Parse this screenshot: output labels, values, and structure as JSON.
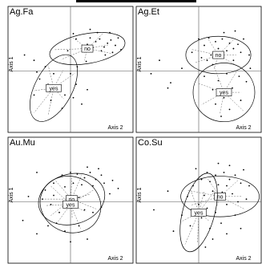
{
  "chart_data": [
    {
      "type": "scatter",
      "title": "Ag.Fa",
      "xlabel": "Axis 2",
      "ylabel": "Axis 1",
      "xlim": [
        -1,
        1
      ],
      "ylim": [
        -1,
        1
      ],
      "grid": false,
      "points": [
        [
          0.35,
          0.62
        ],
        [
          0.45,
          0.55
        ],
        [
          0.52,
          0.6
        ],
        [
          0.6,
          0.45
        ],
        [
          0.66,
          0.52
        ],
        [
          0.72,
          0.58
        ],
        [
          0.8,
          0.48
        ],
        [
          0.55,
          0.38
        ],
        [
          0.4,
          0.44
        ],
        [
          0.3,
          0.5
        ],
        [
          0.25,
          0.36
        ],
        [
          0.62,
          0.3
        ],
        [
          0.75,
          0.35
        ],
        [
          0.85,
          0.62
        ],
        [
          0.48,
          0.72
        ],
        [
          0.1,
          0.6
        ],
        [
          -0.82,
          0.3
        ],
        [
          -0.65,
          0.2
        ],
        [
          -0.45,
          0.08
        ],
        [
          -0.3,
          -0.05
        ],
        [
          -0.55,
          -0.15
        ],
        [
          -0.4,
          -0.25
        ],
        [
          -0.2,
          -0.3
        ],
        [
          -0.1,
          -0.45
        ],
        [
          0.05,
          -0.5
        ],
        [
          -0.35,
          -0.55
        ],
        [
          0.2,
          -0.62
        ],
        [
          -0.65,
          -0.45
        ],
        [
          0.3,
          -0.35
        ],
        [
          -0.15,
          -0.7
        ],
        [
          0.1,
          -0.25
        ],
        [
          0.0,
          -0.05
        ],
        [
          0.12,
          0.08
        ],
        [
          -0.05,
          0.38
        ],
        [
          0.05,
          0.7
        ],
        [
          0.9,
          0.4
        ],
        [
          0.7,
          0.72
        ],
        [
          0.35,
          0.78
        ],
        [
          0.28,
          0.18
        ],
        [
          -0.6,
          -0.02
        ]
      ],
      "groups": [
        {
          "label": "no",
          "center": [
            0.3,
            0.42
          ],
          "rx": 0.68,
          "ry": 0.28,
          "angle": -10
        },
        {
          "label": "yes",
          "center": [
            -0.3,
            -0.32
          ],
          "rx": 0.65,
          "ry": 0.35,
          "angle": -62
        }
      ]
    },
    {
      "type": "scatter",
      "title": "Ag.Et",
      "xlabel": "Axis 2",
      "ylabel": "Axis 1",
      "xlim": [
        -1,
        1
      ],
      "ylim": [
        -1,
        1
      ],
      "grid": false,
      "points": [
        [
          0.18,
          0.62
        ],
        [
          0.3,
          0.55
        ],
        [
          0.42,
          0.6
        ],
        [
          0.55,
          0.52
        ],
        [
          0.62,
          0.42
        ],
        [
          0.7,
          0.5
        ],
        [
          0.5,
          0.38
        ],
        [
          0.35,
          0.42
        ],
        [
          0.22,
          0.3
        ],
        [
          0.1,
          0.48
        ],
        [
          0.0,
          0.6
        ],
        [
          -0.12,
          0.35
        ],
        [
          0.75,
          0.35
        ],
        [
          0.8,
          0.6
        ],
        [
          0.45,
          0.72
        ],
        [
          0.3,
          0.28
        ],
        [
          0.62,
          0.2
        ],
        [
          0.15,
          0.2
        ],
        [
          0.9,
          0.3
        ],
        [
          0.25,
          0.12
        ],
        [
          0.5,
          -0.05
        ],
        [
          0.72,
          -0.1
        ],
        [
          0.35,
          -0.18
        ],
        [
          0.6,
          -0.32
        ],
        [
          0.85,
          -0.2
        ],
        [
          0.45,
          -0.5
        ],
        [
          0.25,
          -0.35
        ],
        [
          0.75,
          -0.55
        ],
        [
          0.55,
          -0.72
        ],
        [
          0.3,
          -0.62
        ],
        [
          -0.5,
          -0.22
        ],
        [
          -0.55,
          -0.32
        ],
        [
          -0.7,
          0.2
        ],
        [
          -0.3,
          0.05
        ],
        [
          -0.85,
          -0.05
        ],
        [
          0.1,
          -0.1
        ],
        [
          0.92,
          0.05
        ],
        [
          0.4,
          -0.85
        ],
        [
          0.65,
          0.75
        ],
        [
          0.05,
          0.25
        ]
      ],
      "groups": [
        {
          "label": "no",
          "center": [
            0.35,
            0.3
          ],
          "rx": 0.58,
          "ry": 0.35,
          "angle": 0
        },
        {
          "label": "yes",
          "center": [
            0.45,
            -0.4
          ],
          "rx": 0.55,
          "ry": 0.55,
          "angle": 0
        }
      ]
    },
    {
      "type": "scatter",
      "title": "Au.Mu",
      "xlabel": "Axis 2",
      "ylabel": "Axis 1",
      "xlim": [
        -1,
        1
      ],
      "ylim": [
        -1,
        1
      ],
      "grid": false,
      "points": [
        [
          -0.15,
          0.5
        ],
        [
          0.0,
          0.55
        ],
        [
          0.12,
          0.52
        ],
        [
          0.25,
          0.45
        ],
        [
          0.35,
          0.55
        ],
        [
          0.45,
          0.42
        ],
        [
          0.55,
          0.5
        ],
        [
          0.6,
          0.35
        ],
        [
          0.4,
          0.3
        ],
        [
          0.2,
          0.32
        ],
        [
          0.05,
          0.35
        ],
        [
          -0.1,
          0.28
        ],
        [
          -0.3,
          0.35
        ],
        [
          -0.45,
          0.22
        ],
        [
          -0.5,
          0.05
        ],
        [
          -0.35,
          -0.05
        ],
        [
          -0.2,
          -0.2
        ],
        [
          -0.05,
          -0.1
        ],
        [
          0.1,
          -0.05
        ],
        [
          0.25,
          -0.15
        ],
        [
          0.4,
          -0.2
        ],
        [
          0.55,
          -0.1
        ],
        [
          0.7,
          0.15
        ],
        [
          0.75,
          0.4
        ],
        [
          0.3,
          0.65
        ],
        [
          -0.25,
          -0.4
        ],
        [
          -0.4,
          -0.45
        ],
        [
          -0.1,
          -0.55
        ],
        [
          0.15,
          -0.45
        ],
        [
          0.3,
          -0.7
        ],
        [
          -0.75,
          0.1
        ],
        [
          -0.85,
          -0.35
        ],
        [
          -0.6,
          -0.6
        ],
        [
          0.0,
          -0.75
        ],
        [
          0.05,
          0.1
        ],
        [
          -0.6,
          0.55
        ],
        [
          0.15,
          0.08
        ],
        [
          0.5,
          0.62
        ],
        [
          -0.3,
          0.12
        ],
        [
          0.85,
          0.25
        ]
      ],
      "groups": [
        {
          "label": "no",
          "center": [
            0.02,
            0.05
          ],
          "rx": 0.6,
          "ry": 0.47,
          "angle": -15
        },
        {
          "label": "yes",
          "center": [
            0.0,
            -0.05
          ],
          "rx": 0.55,
          "ry": 0.52,
          "angle": 25
        }
      ]
    },
    {
      "type": "scatter",
      "title": "Co.Su",
      "xlabel": "Axis 2",
      "ylabel": "Axis 1",
      "xlim": [
        -1,
        1
      ],
      "ylim": [
        -1,
        1
      ],
      "grid": false,
      "points": [
        [
          0.15,
          0.55
        ],
        [
          0.3,
          0.5
        ],
        [
          0.45,
          0.55
        ],
        [
          0.55,
          0.42
        ],
        [
          0.65,
          0.5
        ],
        [
          0.75,
          0.35
        ],
        [
          0.5,
          0.3
        ],
        [
          0.35,
          0.32
        ],
        [
          0.2,
          0.38
        ],
        [
          0.05,
          0.42
        ],
        [
          -0.1,
          0.3
        ],
        [
          0.25,
          0.2
        ],
        [
          0.42,
          0.18
        ],
        [
          0.6,
          0.15
        ],
        [
          0.8,
          0.6
        ],
        [
          0.9,
          0.3
        ],
        [
          0.1,
          0.12
        ],
        [
          -0.2,
          0.1
        ],
        [
          0.0,
          -0.05
        ],
        [
          0.15,
          -0.12
        ],
        [
          0.3,
          -0.2
        ],
        [
          0.5,
          -0.05
        ],
        [
          0.65,
          -0.25
        ],
        [
          0.4,
          -0.4
        ],
        [
          0.2,
          -0.5
        ],
        [
          0.05,
          -0.3
        ],
        [
          -0.15,
          -0.45
        ],
        [
          0.25,
          -0.7
        ],
        [
          0.5,
          -0.6
        ],
        [
          -0.3,
          -0.25
        ],
        [
          -0.55,
          0.2
        ],
        [
          -0.45,
          -0.55
        ],
        [
          0.7,
          0.0
        ],
        [
          -0.05,
          0.62
        ],
        [
          0.35,
          0.72
        ],
        [
          0.85,
          0.05
        ],
        [
          0.55,
          0.68
        ],
        [
          -0.8,
          -0.15
        ],
        [
          0.12,
          -0.85
        ],
        [
          0.75,
          -0.5
        ]
      ],
      "groups": [
        {
          "label": "no",
          "center": [
            0.38,
            0.1
          ],
          "rx": 0.7,
          "ry": 0.38,
          "angle": 0
        },
        {
          "label": "yes",
          "center": [
            0.0,
            -0.2
          ],
          "rx": 0.72,
          "ry": 0.3,
          "angle": -75
        }
      ]
    }
  ]
}
